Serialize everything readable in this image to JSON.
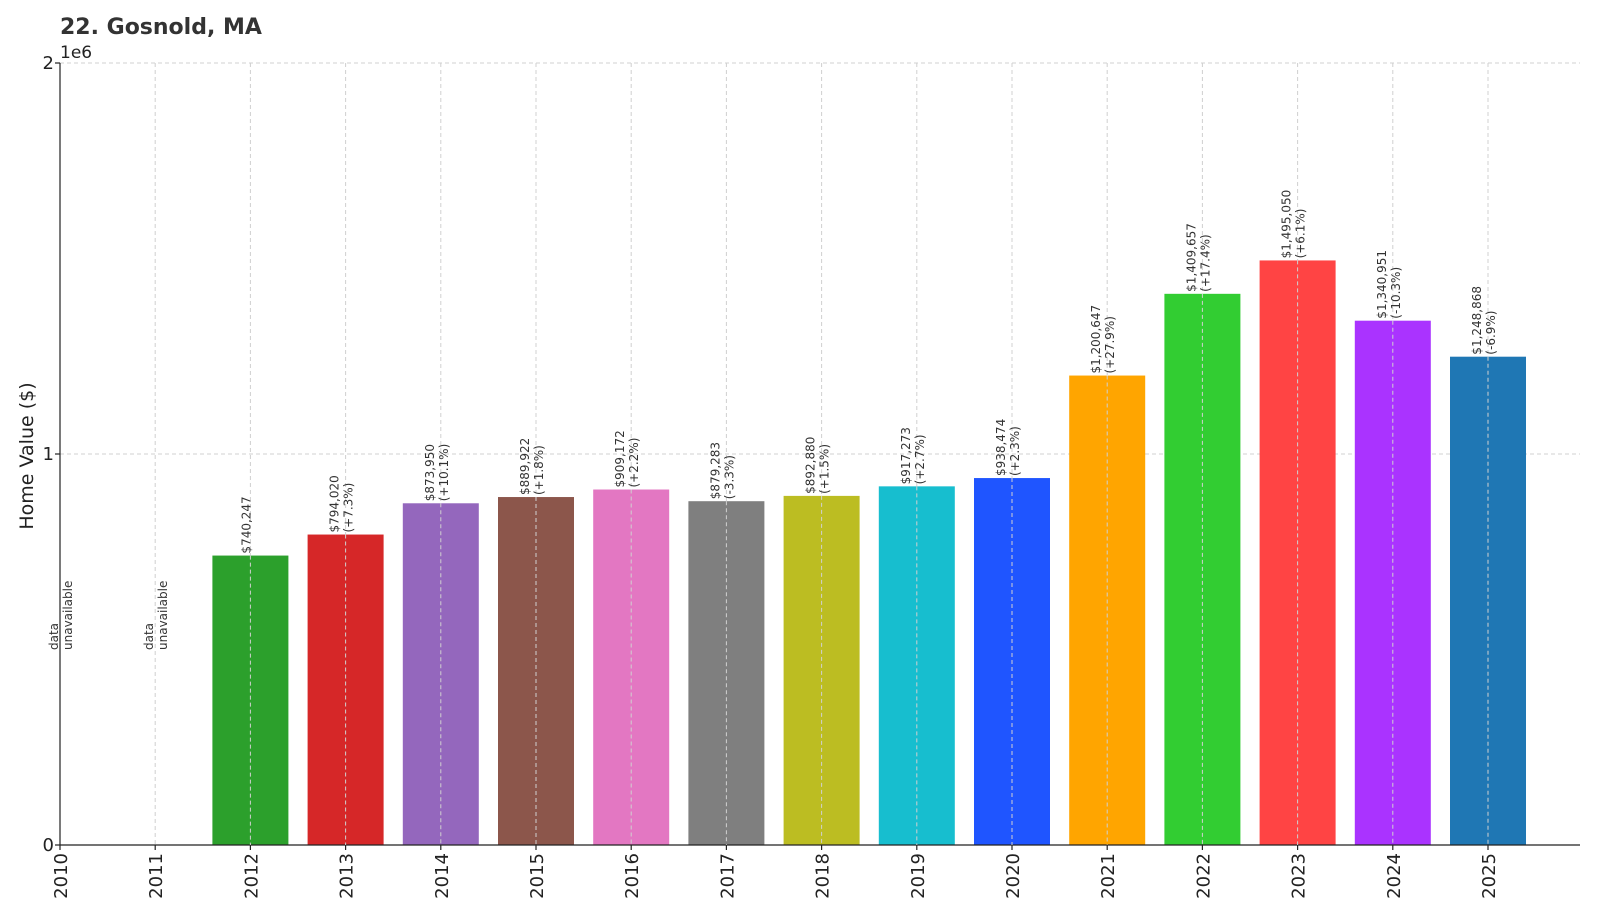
{
  "chart_data": {
    "type": "bar",
    "title": "22. Gosnold, MA",
    "xlabel": "",
    "ylabel": "Home Value ($)",
    "y_scale_note": "1e6",
    "ylim": [
      0,
      2000000
    ],
    "y_ticks": [
      0,
      1000000,
      2000000
    ],
    "y_tick_labels": [
      "0",
      "1",
      "2"
    ],
    "grid": true,
    "categories": [
      "2010",
      "2011",
      "2012",
      "2013",
      "2014",
      "2015",
      "2016",
      "2017",
      "2018",
      "2019",
      "2020",
      "2021",
      "2022",
      "2023",
      "2024",
      "2025"
    ],
    "values": [
      null,
      null,
      740247,
      794020,
      873950,
      889922,
      909172,
      879283,
      892880,
      917273,
      938474,
      1200647,
      1409657,
      1495050,
      1340951,
      1248868
    ],
    "value_labels": [
      "",
      "",
      "$740,247",
      "$794,020",
      "$873,950",
      "$889,922",
      "$909,172",
      "$879,283",
      "$892,880",
      "$917,273",
      "$938,474",
      "$1,200,647",
      "$1,409,657",
      "$1,495,050",
      "$1,340,951",
      "$1,248,868"
    ],
    "change_labels": [
      "",
      "",
      "",
      "(+7.3%)",
      "(+10.1%)",
      "(+1.8%)",
      "(+2.2%)",
      "(-3.3%)",
      "(+1.5%)",
      "(+2.7%)",
      "(+2.3%)",
      "(+27.9%)",
      "(+17.4%)",
      "(+6.1%)",
      "(-10.3%)",
      "(-6.9%)"
    ],
    "missing_label_line1": "data",
    "missing_label_line2": "unavailable",
    "colors": [
      "#1f77b4",
      "#ff7f0e",
      "#2ca02c",
      "#d62728",
      "#9467bd",
      "#8c564b",
      "#e377c2",
      "#7f7f7f",
      "#bcbd22",
      "#17becf",
      "#1f55ff",
      "#ffa500",
      "#32cd32",
      "#ff4444",
      "#aa33ff",
      "#1f77b4"
    ]
  }
}
